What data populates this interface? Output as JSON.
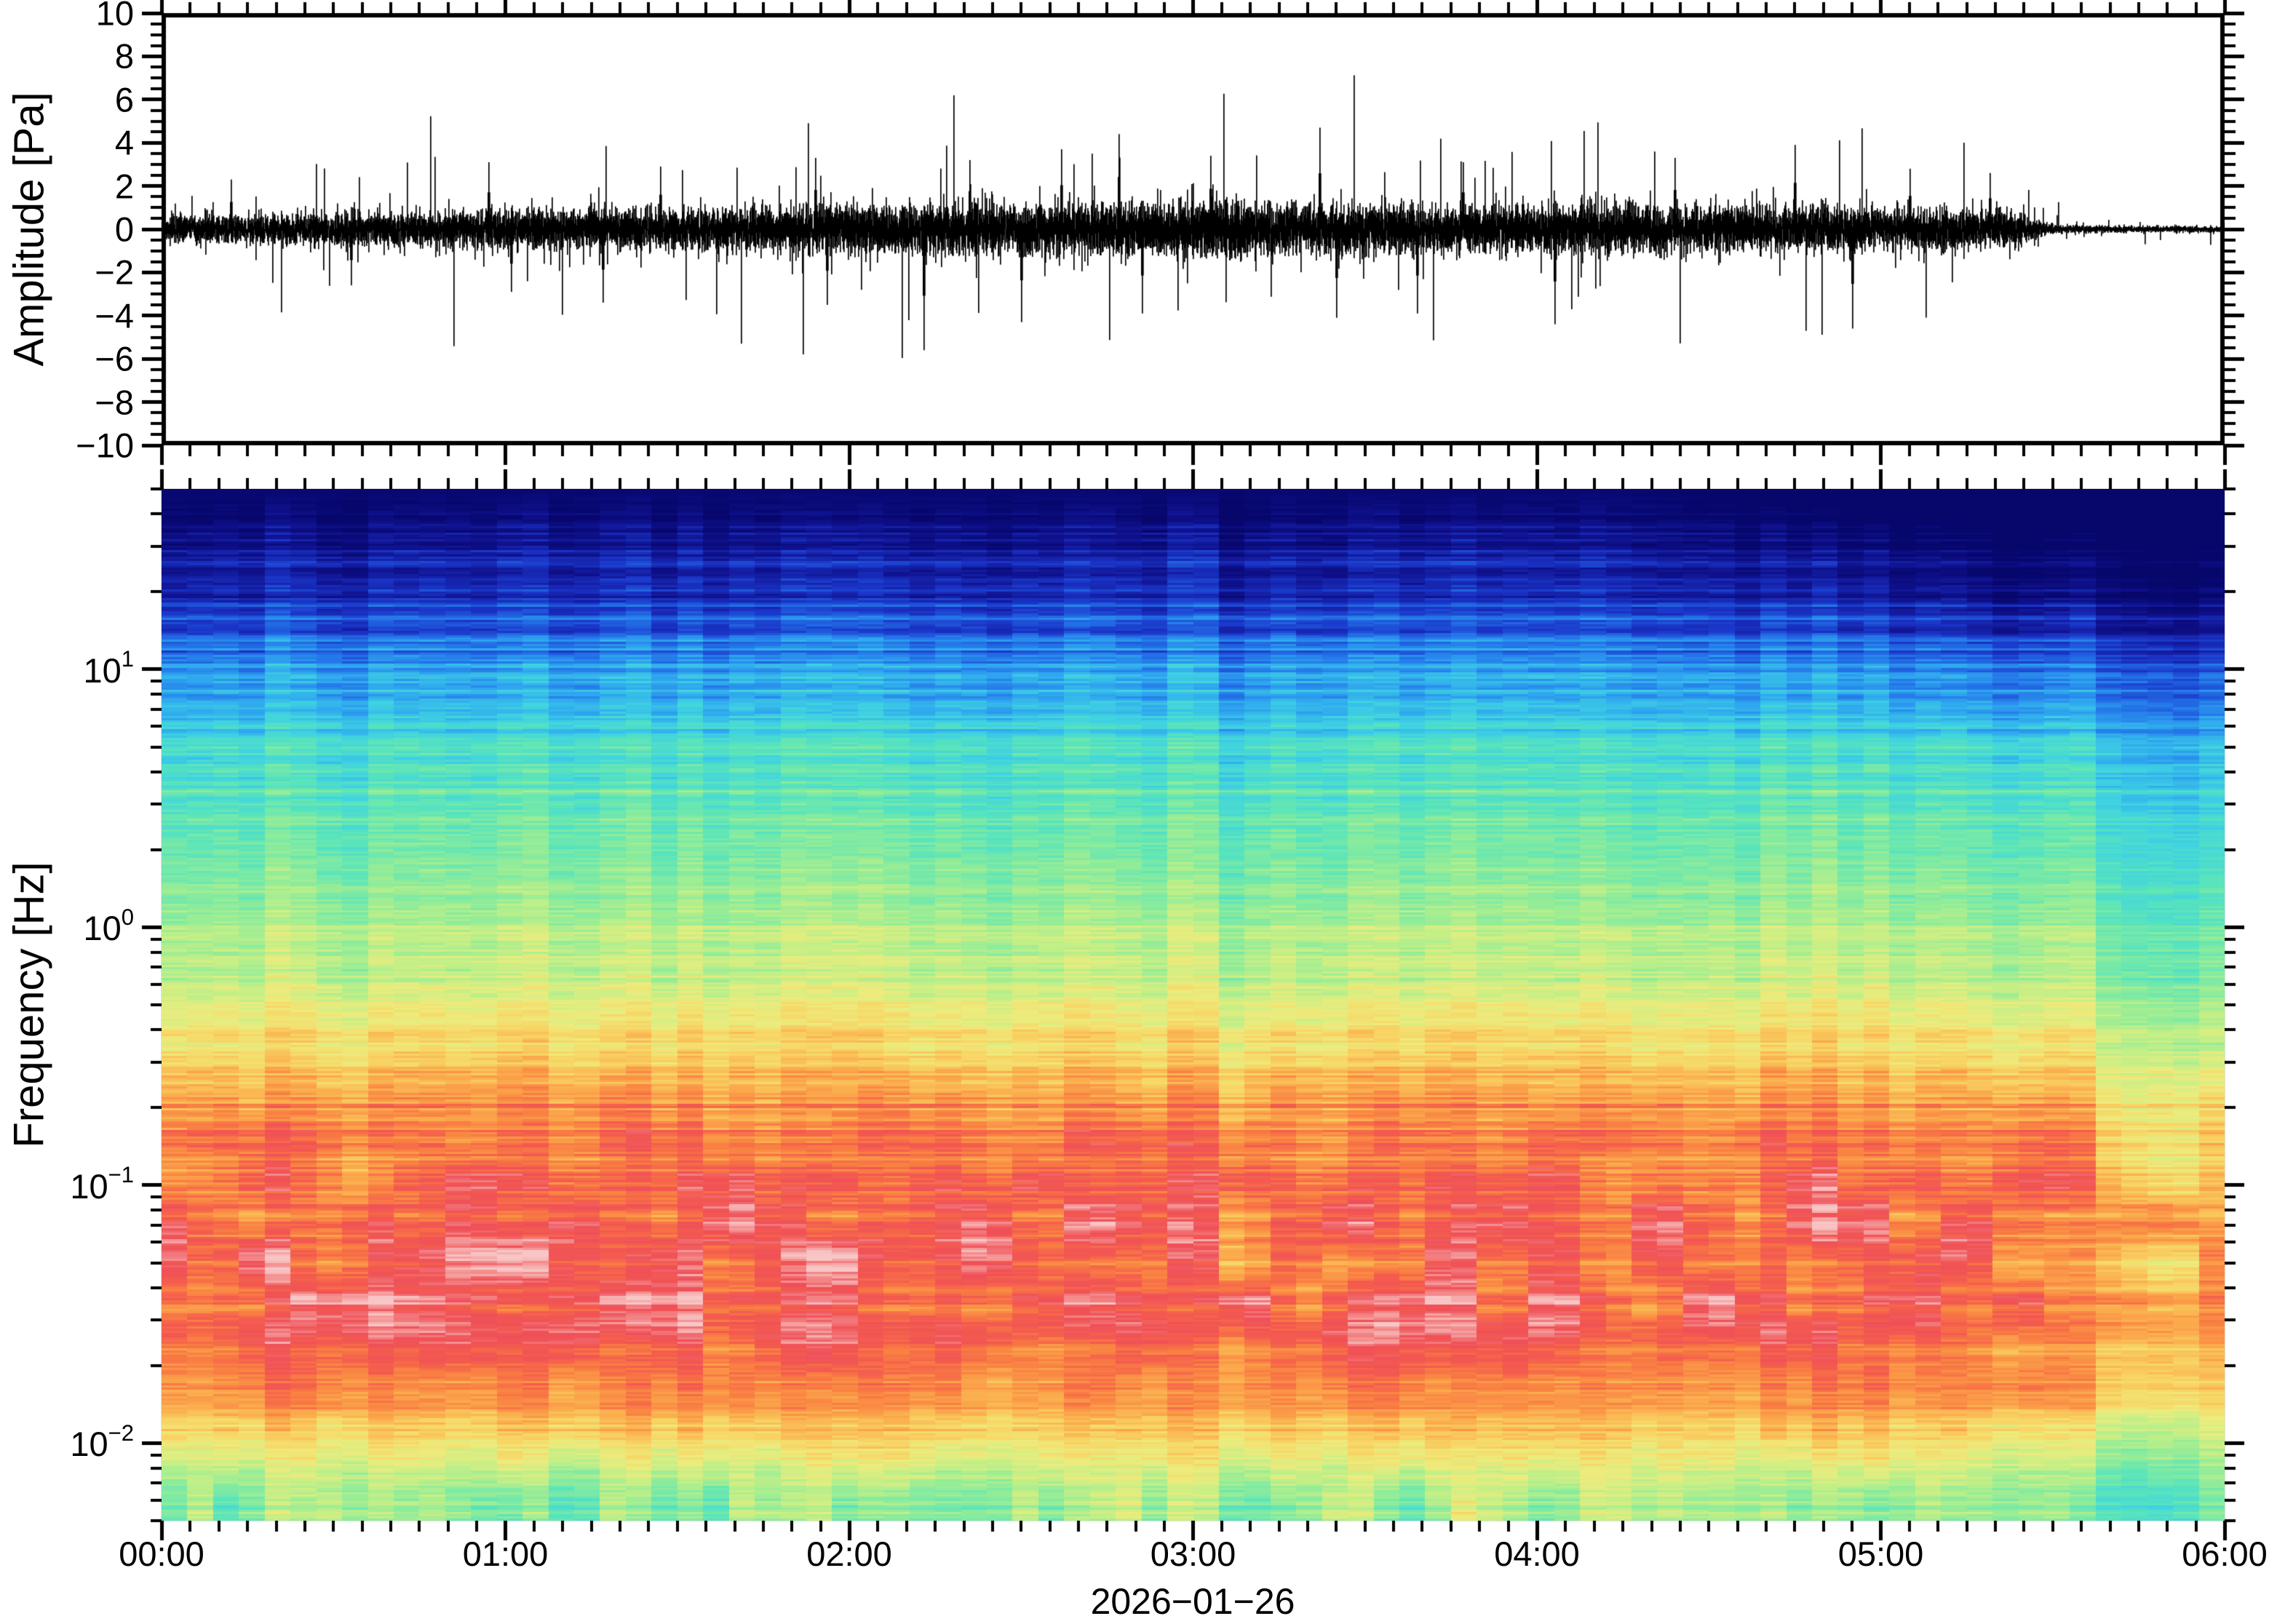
{
  "figure": {
    "background": "#ffffff",
    "frame_color": "#000000"
  },
  "waveform_panel": {
    "ylabel": "Amplitude [Pa]",
    "ylim": [
      -10,
      10
    ],
    "ytick_values": [
      10,
      8,
      6,
      4,
      2,
      0,
      -2,
      -4,
      -6,
      -8,
      -10
    ],
    "ytick_labels": [
      "10",
      "8",
      "6",
      "4",
      "2",
      "0",
      "−2",
      "−4",
      "−6",
      "−8",
      "−10"
    ],
    "minor_tick_step": 0.5,
    "line_color": "#000000"
  },
  "spectrogram_panel": {
    "ylabel": "Frequency [Hz]",
    "yscale": "log",
    "ylim_hz": [
      0.005,
      50
    ],
    "ytick_labels": [
      {
        "value": 10,
        "base": "10",
        "exp": "1"
      },
      {
        "value": 1,
        "base": "10",
        "exp": "0"
      },
      {
        "value": 0.1,
        "base": "10",
        "exp": "−1"
      },
      {
        "value": 0.01,
        "base": "10",
        "exp": "−2"
      }
    ]
  },
  "time_axis": {
    "tick_labels": [
      "00:00",
      "01:00",
      "02:00",
      "03:00",
      "04:00",
      "05:00",
      "06:00"
    ],
    "tick_hours": [
      0,
      1,
      2,
      3,
      4,
      5,
      6
    ],
    "minor_interval_minutes": 5,
    "date_label": "2026−01−26"
  },
  "chart_data": [
    {
      "type": "line",
      "name": "infrasound-pressure-waveform",
      "ylabel": "Amplitude [Pa]",
      "ylim": [
        -10,
        10
      ],
      "yticks": [
        10,
        8,
        6,
        4,
        2,
        0,
        -2,
        -4,
        -6,
        -8,
        -10
      ],
      "x_start": "00:00",
      "x_end": "06:00",
      "date": "2026-01-26",
      "line_color": "#000000",
      "description": "Zero-mean broadband pressure noise; amplitude slowly grows toward mid-record, stays within roughly ±2 Pa background with impulsive spikes, then drops abruptly to a very quiet trace after ~05:28.",
      "rms_envelope": [
        {
          "time": "00:00",
          "rms_pa": 0.3
        },
        {
          "time": "00:20",
          "rms_pa": 0.34
        },
        {
          "time": "00:40",
          "rms_pa": 0.38
        },
        {
          "time": "01:00",
          "rms_pa": 0.42
        },
        {
          "time": "01:20",
          "rms_pa": 0.45
        },
        {
          "time": "01:40",
          "rms_pa": 0.48
        },
        {
          "time": "02:00",
          "rms_pa": 0.52
        },
        {
          "time": "02:20",
          "rms_pa": 0.55
        },
        {
          "time": "02:40",
          "rms_pa": 0.58
        },
        {
          "time": "03:00",
          "rms_pa": 0.6
        },
        {
          "time": "03:15",
          "rms_pa": 0.58
        },
        {
          "time": "03:30",
          "rms_pa": 0.55
        },
        {
          "time": "03:45",
          "rms_pa": 0.53
        },
        {
          "time": "04:00",
          "rms_pa": 0.52
        },
        {
          "time": "04:15",
          "rms_pa": 0.55
        },
        {
          "time": "04:30",
          "rms_pa": 0.52
        },
        {
          "time": "04:45",
          "rms_pa": 0.5
        },
        {
          "time": "05:00",
          "rms_pa": 0.46
        },
        {
          "time": "05:12",
          "rms_pa": 0.48
        },
        {
          "time": "05:21",
          "rms_pa": 0.42
        },
        {
          "time": "05:27",
          "rms_pa": 0.25
        },
        {
          "time": "05:30",
          "rms_pa": 0.1
        },
        {
          "time": "05:36",
          "rms_pa": 0.085
        },
        {
          "time": "06:00",
          "rms_pa": 0.075
        }
      ],
      "peak_events": [
        {
          "time": "00:12",
          "amplitude_pa": 2.3
        },
        {
          "time": "00:33",
          "amplitude_pa": -2.6
        },
        {
          "time": "00:57",
          "amplitude_pa": 3.1
        },
        {
          "time": "01:01",
          "amplitude_pa": -2.9
        },
        {
          "time": "01:17",
          "amplitude_pa": -3.4
        },
        {
          "time": "01:27",
          "amplitude_pa": 2.9
        },
        {
          "time": "01:54",
          "amplitude_pa": 3.3
        },
        {
          "time": "01:56",
          "amplitude_pa": -3.5
        },
        {
          "time": "02:13",
          "amplitude_pa": -5.6
        },
        {
          "time": "02:21",
          "amplitude_pa": 3.2
        },
        {
          "time": "02:30",
          "amplitude_pa": -4.3
        },
        {
          "time": "02:37",
          "amplitude_pa": 3.7
        },
        {
          "time": "02:47",
          "amplitude_pa": 4.4
        },
        {
          "time": "02:51",
          "amplitude_pa": -3.9
        },
        {
          "time": "03:03",
          "amplitude_pa": 3.4
        },
        {
          "time": "03:22",
          "amplitude_pa": 4.7
        },
        {
          "time": "03:25",
          "amplitude_pa": -4.1
        },
        {
          "time": "03:39",
          "amplitude_pa": -3.9
        },
        {
          "time": "03:47",
          "amplitude_pa": 3.1
        },
        {
          "time": "04:03",
          "amplitude_pa": -4.4
        },
        {
          "time": "04:24",
          "amplitude_pa": 3.3
        },
        {
          "time": "04:45",
          "amplitude_pa": 3.9
        },
        {
          "time": "04:55",
          "amplitude_pa": -4.6
        },
        {
          "time": "05:05",
          "amplitude_pa": 2.8
        },
        {
          "time": "05:19",
          "amplitude_pa": 2.6
        }
      ],
      "quiet_period": {
        "start": "05:28",
        "end": "06:00",
        "rms_pa": 0.08
      }
    },
    {
      "type": "heatmap",
      "name": "spectrogram",
      "ylabel": "Frequency [Hz]",
      "yscale": "log",
      "ylim_hz": [
        0.005,
        50
      ],
      "yticks_hz": [
        10,
        1,
        0.1,
        0.01
      ],
      "x_start": "00:00",
      "x_end": "06:00",
      "date": "2026-01-26",
      "time_bin_minutes": 4.5,
      "colormap": "relative power low→high: navy, blue, sky, cyan, green, yellow, orange, red, pale pink",
      "colormap_stops": [
        {
          "p": 0.0,
          "color": "#06066b"
        },
        {
          "p": 0.08,
          "color": "#10128f"
        },
        {
          "p": 0.16,
          "color": "#1a35c8"
        },
        {
          "p": 0.24,
          "color": "#2372e8"
        },
        {
          "p": 0.31,
          "color": "#2fa8ef"
        },
        {
          "p": 0.38,
          "color": "#3fd2e2"
        },
        {
          "p": 0.45,
          "color": "#58e4bc"
        },
        {
          "p": 0.52,
          "color": "#8eec9a"
        },
        {
          "p": 0.58,
          "color": "#c2ef87"
        },
        {
          "p": 0.64,
          "color": "#ecec7d"
        },
        {
          "p": 0.7,
          "color": "#f8d464"
        },
        {
          "p": 0.76,
          "color": "#fbaa4c"
        },
        {
          "p": 0.82,
          "color": "#f97f42"
        },
        {
          "p": 0.87,
          "color": "#f45c4e"
        },
        {
          "p": 0.92,
          "color": "#ef5058"
        },
        {
          "p": 0.96,
          "color": "#f48e8e"
        },
        {
          "p": 1.0,
          "color": "#f8c6c6"
        }
      ],
      "mean_power_profile": [
        {
          "freq_hz": 50,
          "p": 0.015
        },
        {
          "freq_hz": 35,
          "p": 0.05
        },
        {
          "freq_hz": 25,
          "p": 0.11
        },
        {
          "freq_hz": 18,
          "p": 0.17
        },
        {
          "freq_hz": 12,
          "p": 0.26
        },
        {
          "freq_hz": 8,
          "p": 0.34
        },
        {
          "freq_hz": 5,
          "p": 0.41
        },
        {
          "freq_hz": 3,
          "p": 0.47
        },
        {
          "freq_hz": 2,
          "p": 0.5
        },
        {
          "freq_hz": 1.2,
          "p": 0.545
        },
        {
          "freq_hz": 0.8,
          "p": 0.575
        },
        {
          "freq_hz": 0.5,
          "p": 0.63
        },
        {
          "freq_hz": 0.35,
          "p": 0.68
        },
        {
          "freq_hz": 0.25,
          "p": 0.76
        },
        {
          "freq_hz": 0.18,
          "p": 0.8
        },
        {
          "freq_hz": 0.12,
          "p": 0.84
        },
        {
          "freq_hz": 0.08,
          "p": 0.875
        },
        {
          "freq_hz": 0.05,
          "p": 0.895
        },
        {
          "freq_hz": 0.03,
          "p": 0.885
        },
        {
          "freq_hz": 0.02,
          "p": 0.845
        },
        {
          "freq_hz": 0.015,
          "p": 0.78
        },
        {
          "freq_hz": 0.011,
          "p": 0.72
        },
        {
          "freq_hz": 0.008,
          "p": 0.63
        },
        {
          "freq_hz": 0.006,
          "p": 0.57
        },
        {
          "freq_hz": 0.005,
          "p": 0.555
        }
      ],
      "features": [
        "energy maximum (red band with pale-pink saturated patches) between ~0.02 and 0.3 Hz all day",
        "yellow-green background with scattered teal patches below ~0.01 Hz",
        "smooth decrease of power toward 50 Hz; uniform dark navy strip at the very top",
        "fine horizontal striping and ~4-minute vertical column texture throughout",
        "high-frequency power fades progressively after ~04:20",
        "abrupt overall power drop after ~05:32: low-frequency band turns orange-yellow, mid band cyan, top very dark"
      ],
      "high_freq_fade": {
        "start_hour": 4.3,
        "span_hours": 1.7,
        "strength": 0.17
      },
      "quiet_transition": {
        "start": "05:32",
        "end": "05:41",
        "power_scale": 0.88,
        "power_offset": -0.03
      }
    }
  ]
}
